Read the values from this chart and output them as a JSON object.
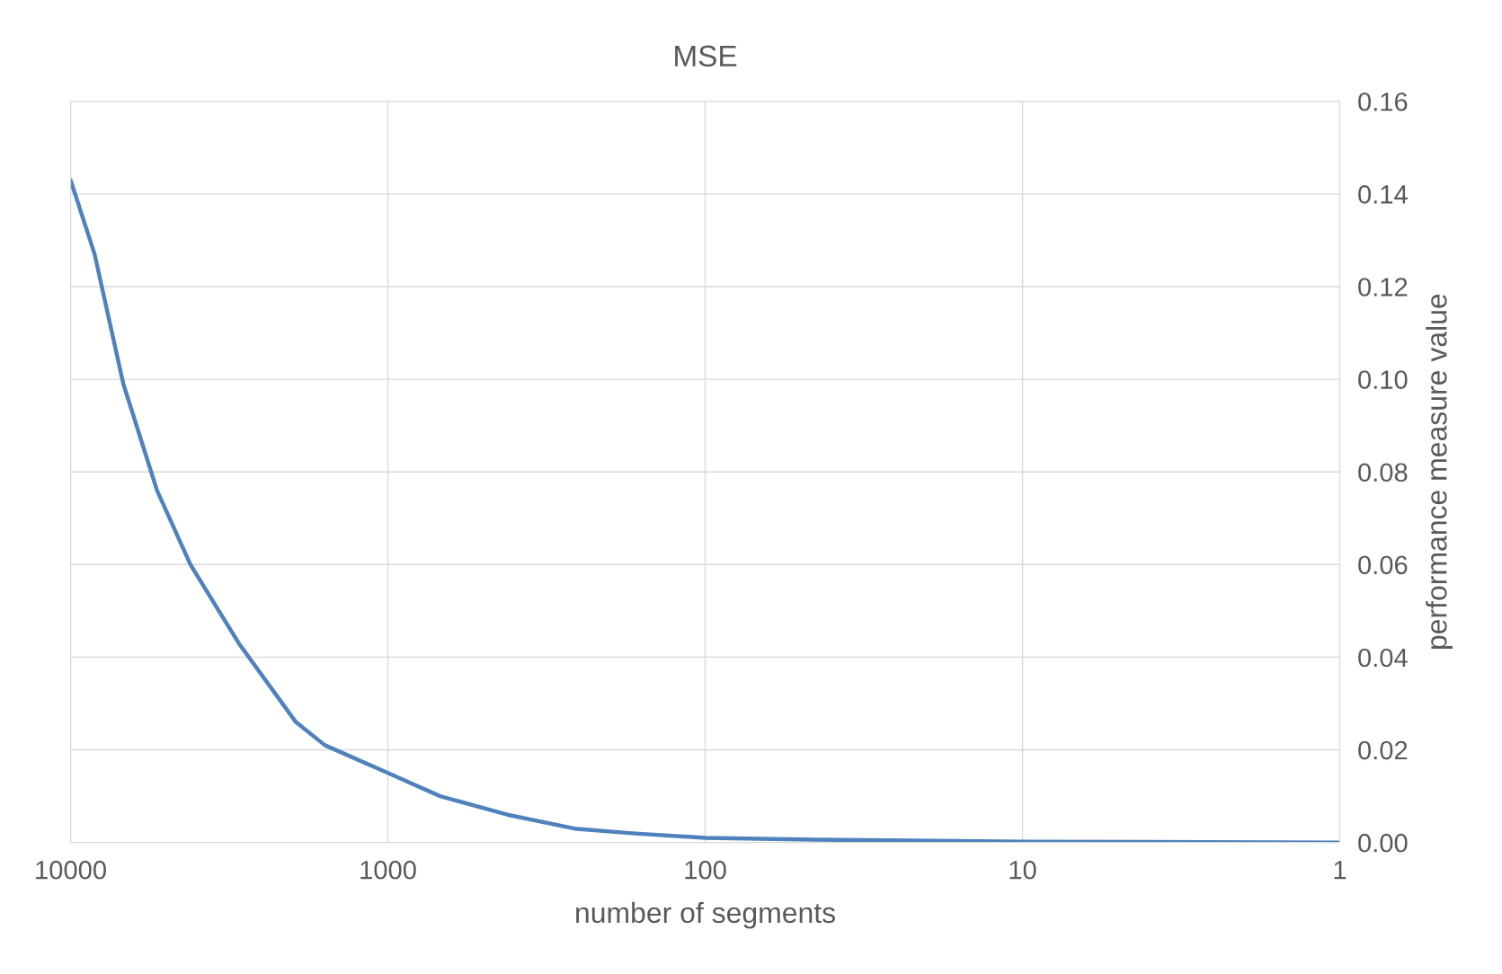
{
  "chart_data": {
    "type": "line",
    "title": "MSE",
    "xlabel": "number of segments",
    "y2label": "performance measure value",
    "log": "x",
    "xlim": [
      10000,
      1
    ],
    "xticks": [
      10000,
      1000,
      100,
      10,
      1
    ],
    "y2lim": [
      0,
      0.16
    ],
    "y2ticks": [
      {
        "value": 0,
        "label": "0.00"
      },
      {
        "value": 0.02,
        "label": "0.02"
      },
      {
        "value": 0.04,
        "label": "0.04"
      },
      {
        "value": 0.06,
        "label": "0.06"
      },
      {
        "value": 0.08,
        "label": "0.08"
      },
      {
        "value": 0.1,
        "label": "0.10"
      },
      {
        "value": 0.12,
        "label": "0.12"
      },
      {
        "value": 0.14,
        "label": "0.14"
      },
      {
        "value": 0.16,
        "label": "0.16"
      }
    ],
    "grid": true,
    "marker": "none",
    "line_style": "solid",
    "series": [
      {
        "axis": "y2",
        "color": "#4f81bd",
        "x": [
          10000,
          8400,
          6820,
          5340,
          4190,
          2950,
          1950,
          1580,
          1000,
          684,
          420,
          258,
          170,
          100,
          45,
          10,
          1
        ],
        "values": [
          0.143,
          0.127,
          0.099,
          0.076,
          0.06,
          0.043,
          0.026,
          0.021,
          0.015,
          0.01,
          0.006,
          0.003,
          0.002,
          0.001,
          0.0006,
          0.0002,
          0.0
        ]
      }
    ]
  }
}
